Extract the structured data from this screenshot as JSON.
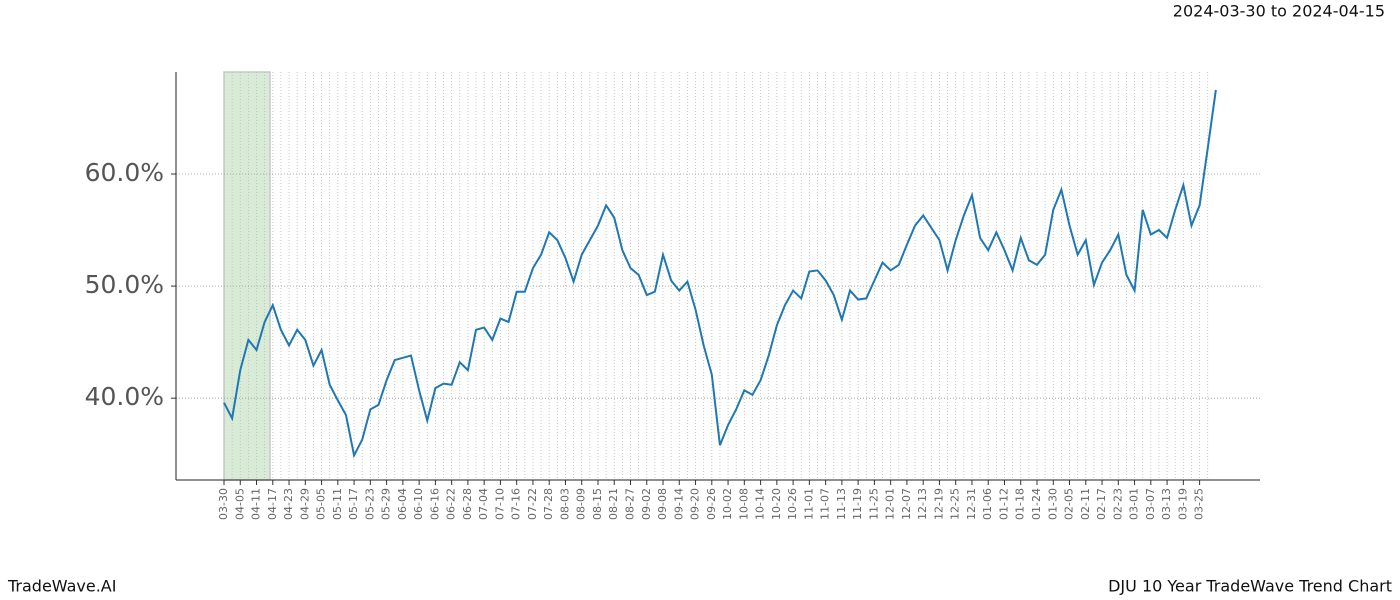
{
  "header": {
    "range": "2024-03-30 to 2024-04-15"
  },
  "footer": {
    "brand": "TradeWave.AI",
    "chart_name": "DJU 10 Year TradeWave Trend Chart"
  },
  "chart_data": {
    "type": "line",
    "categories": [
      "03-30",
      null,
      "04-05",
      null,
      "04-11",
      null,
      "04-17",
      null,
      "04-23",
      null,
      "04-29",
      null,
      "05-05",
      null,
      "05-11",
      null,
      "05-17",
      null,
      "05-23",
      null,
      "05-29",
      null,
      "06-04",
      null,
      "06-10",
      null,
      "06-16",
      null,
      "06-22",
      null,
      "06-28",
      null,
      "07-04",
      null,
      "07-10",
      null,
      "07-16",
      null,
      "07-22",
      null,
      "07-28",
      null,
      "08-03",
      null,
      "08-09",
      null,
      "08-15",
      null,
      "08-21",
      null,
      "08-27",
      null,
      "09-02",
      null,
      "09-08",
      null,
      "09-14",
      null,
      "09-20",
      null,
      "09-26",
      null,
      "10-02",
      null,
      "10-08",
      null,
      "10-14",
      null,
      "10-20",
      null,
      "10-26",
      null,
      "11-01",
      null,
      "11-07",
      null,
      "11-13",
      null,
      "11-19",
      null,
      "11-25",
      null,
      "12-01",
      null,
      "12-07",
      null,
      "12-13",
      null,
      "12-19",
      null,
      "12-25",
      null,
      "12-31",
      null,
      "01-06",
      null,
      "01-12",
      null,
      "01-18",
      null,
      "01-24",
      null,
      "01-30",
      null,
      "02-05",
      null,
      "02-11",
      null,
      "02-17",
      null,
      "02-23",
      null,
      "03-01",
      null,
      "03-07",
      null,
      "03-13",
      null,
      "03-19",
      null,
      "03-25",
      null,
      null
    ],
    "series": [
      {
        "color": "#1f77b4",
        "values": [
          39.6,
          38.2,
          42.5,
          45.2,
          44.3,
          46.8,
          48.3,
          46.1,
          44.7,
          46.1,
          45.2,
          42.9,
          44.3,
          41.2,
          39.8,
          38.5,
          34.9,
          36.3,
          39.0,
          39.4,
          41.6,
          43.4,
          43.6,
          43.8,
          40.7,
          38.0,
          40.9,
          41.3,
          41.2,
          43.2,
          42.5,
          46.1,
          46.3,
          45.2,
          47.1,
          46.8,
          49.5,
          49.5,
          51.6,
          52.8,
          54.8,
          54.1,
          52.5,
          50.4,
          52.8,
          54.1,
          55.4,
          57.2,
          56.1,
          53.2,
          51.6,
          51.0,
          49.2,
          49.5,
          52.8,
          50.5,
          49.6,
          50.4,
          47.9,
          44.7,
          42.1,
          35.8,
          37.6,
          39.0,
          40.7,
          40.3,
          41.6,
          43.8,
          46.5,
          48.3,
          49.6,
          48.9,
          51.3,
          51.4,
          50.5,
          49.2,
          47.0,
          49.6,
          48.8,
          48.9,
          50.5,
          52.1,
          51.4,
          51.9,
          53.7,
          55.4,
          56.3,
          55.2,
          54.1,
          51.4,
          54.1,
          56.3,
          58.1,
          54.3,
          53.2,
          54.8,
          53.2,
          51.4,
          54.3,
          52.3,
          51.9,
          52.8,
          56.8,
          58.6,
          55.4,
          52.8,
          54.1,
          50.1,
          52.1,
          53.2,
          54.6,
          51.0,
          49.6,
          56.8,
          54.6,
          55.0,
          54.3,
          56.8,
          59.0,
          55.4,
          57.2,
          62.3,
          67.5
        ]
      }
    ],
    "ylim": [
      32.7,
      69.1
    ],
    "yticks": [
      {
        "value": 40,
        "label": "40.0%"
      },
      {
        "value": 50,
        "label": "50.0%"
      },
      {
        "value": 60,
        "label": "60.0%"
      }
    ],
    "grid": true,
    "highlight": [
      0,
      5.66
    ],
    "highlight_color": "#d8ebd6"
  }
}
